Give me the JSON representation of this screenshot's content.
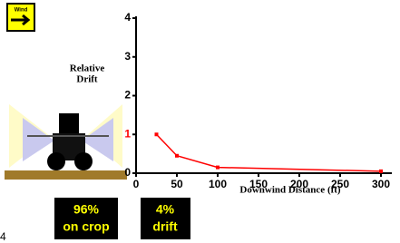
{
  "wind_icon": {
    "label": "Wind"
  },
  "chart_data": {
    "type": "line",
    "y_label": [
      "Relative",
      "Drift"
    ],
    "x_label": "Downwind Distance (ft)",
    "x": [
      25,
      50,
      100,
      300
    ],
    "series": [
      {
        "color": "#ff0000",
        "values": [
          1,
          0.45,
          0.15,
          0.05
        ]
      }
    ],
    "xlim": [
      0,
      300
    ],
    "xticks": [
      0,
      50,
      100,
      150,
      200,
      250,
      300
    ],
    "ylim": [
      0,
      4
    ],
    "yticks": [
      0,
      1,
      2,
      3,
      4
    ],
    "ytick_colors": [
      "#000000",
      "#ff0000",
      "#000000",
      "#000000",
      "#000000"
    ]
  },
  "crop_box": {
    "lines": [
      "96%",
      "on crop"
    ]
  },
  "drift_box": {
    "lines": [
      "4%",
      "drift"
    ]
  },
  "corner_text": "4"
}
